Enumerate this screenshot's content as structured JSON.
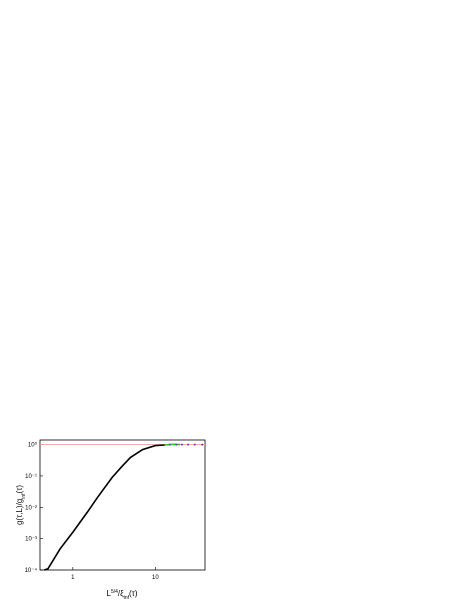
{
  "chart_data": {
    "type": "line",
    "x_label": [
      {
        "text": "L"
      },
      {
        "text": "5/4",
        "style": "sup"
      },
      {
        "text": "/ξ"
      },
      {
        "text": "inf",
        "style": "sub"
      },
      {
        "text": "(τ)"
      }
    ],
    "y_label": [
      {
        "text": "g(τ,L)/g"
      },
      {
        "text": "inf",
        "style": "sub"
      },
      {
        "text": "(τ)"
      }
    ],
    "xscale": "log",
    "yscale": "log",
    "xlim": [
      0.4,
      40
    ],
    "ylim": [
      0.0001,
      1.4
    ],
    "xticks": [
      1,
      10
    ],
    "yticks": [
      {
        "value": 0.0001,
        "label": "10⁻⁴"
      },
      {
        "value": 0.001,
        "label": "10⁻³"
      },
      {
        "value": 0.01,
        "label": "10⁻²"
      },
      {
        "value": 0.1,
        "label": "10⁻¹"
      },
      {
        "value": 1,
        "label": "10⁰"
      }
    ],
    "reference_line": {
      "value": 1,
      "color": "#f4a0a0"
    },
    "series": [
      {
        "color": "#000000",
        "style": "line",
        "x": [
          0.45,
          0.5,
          0.7,
          1,
          1.5,
          2,
          3,
          4,
          5,
          7,
          10,
          13
        ],
        "values": [
          0.0001,
          0.00011,
          0.00047,
          0.0016,
          0.007,
          0.021,
          0.09,
          0.21,
          0.39,
          0.69,
          0.93,
          0.97
        ]
      },
      {
        "color": "#22cc22",
        "style": "line",
        "x": [
          13,
          15,
          17,
          20
        ],
        "values": [
          0.97,
          1.0,
          1.02,
          1.0
        ]
      },
      {
        "color": "#7a2fb8",
        "style": "markers",
        "x": [
          15,
          18,
          21,
          25,
          30,
          37
        ],
        "values": [
          1,
          1,
          1,
          1,
          1,
          1
        ]
      }
    ]
  }
}
